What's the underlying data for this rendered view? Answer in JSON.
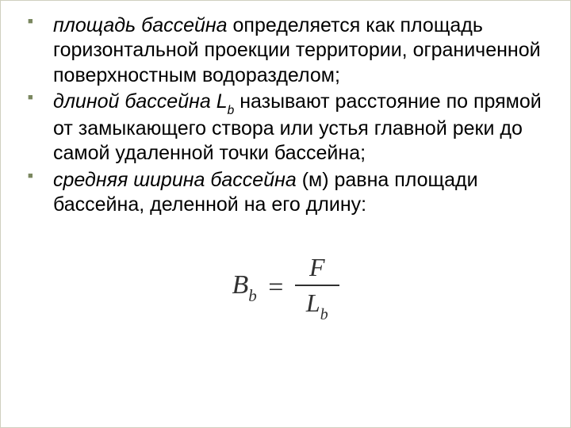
{
  "bullets": [
    {
      "term": "площадь бассейна",
      "rest": " определяется как площадь горизонтальной проекции территории, ограниченной поверхностным водоразделом;"
    },
    {
      "term": "длиной бассейна L",
      "term_sub": "b",
      "rest": " называют расстояние по прямой от замыкающего створа или устья главной реки до самой удаленной точки бассейна;"
    },
    {
      "term": "средняя ширина бассейна",
      "rest": " (м) равна площади бассейна, деленной на его длину:"
    }
  ],
  "formula": {
    "lhs_main": "B",
    "lhs_sub": "b",
    "eq": "=",
    "numerator": "F",
    "denom_main": "L",
    "denom_sub": "b",
    "font_size": 34,
    "color": "#303030"
  },
  "style": {
    "body_font_size": 25,
    "bullet_color": "#7a875f",
    "text_color": "#000000",
    "background": "#ffffff"
  }
}
